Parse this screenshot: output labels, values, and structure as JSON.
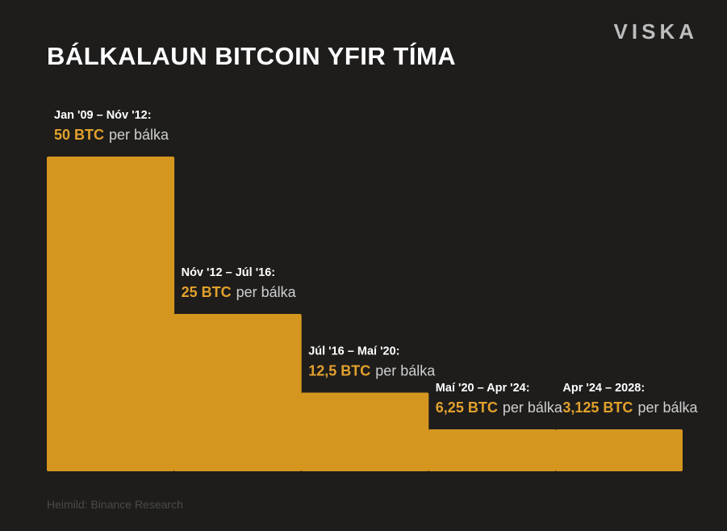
{
  "brand": "VISKA",
  "source": "Heimild: Binance Research",
  "colors": {
    "background": "#1e1d1c",
    "bar": "#d4961e",
    "accent": "#e2a12c"
  },
  "chart_data": {
    "type": "bar",
    "title": "BÁLKALAUN BITCOIN YFIR TÍMA",
    "xlabel": "",
    "ylabel": "",
    "ylim": [
      0,
      50
    ],
    "grid": false,
    "categories": [
      "Jan '09 – Nóv '12:",
      "Nóv '12 – Júl '16:",
      "Júl '16 – Maí '20:",
      "Maí '20 – Apr '24:",
      "Apr '24 – 2028:"
    ],
    "values": [
      50,
      25,
      12.5,
      6.25,
      3.125
    ],
    "value_labels": [
      "50 BTC",
      "25 BTC",
      "12,5 BTC",
      "6,25 BTC",
      "3,125 BTC"
    ],
    "unit_suffix": "per bálka"
  }
}
